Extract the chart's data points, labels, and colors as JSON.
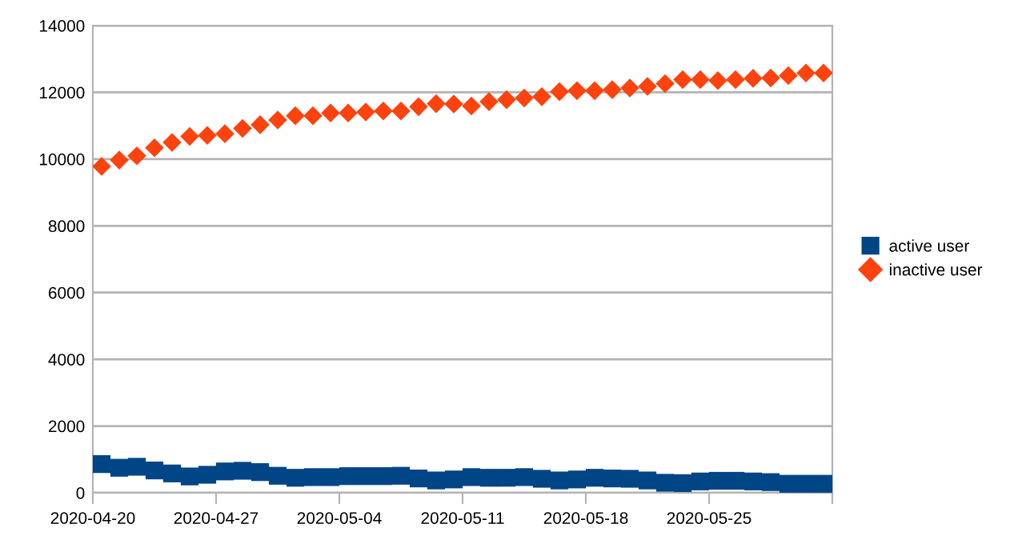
{
  "chart_data": {
    "type": "scatter",
    "x": [
      "2020-04-20T12:00",
      "2020-04-21T12:00",
      "2020-04-22T12:00",
      "2020-04-23T12:00",
      "2020-04-24T12:00",
      "2020-04-25T12:00",
      "2020-04-26T12:00",
      "2020-04-27T12:00",
      "2020-04-28T12:00",
      "2020-04-29T12:00",
      "2020-04-30T12:00",
      "2020-05-01T12:00",
      "2020-05-02T12:00",
      "2020-05-03T12:00",
      "2020-05-04T12:00",
      "2020-05-05T12:00",
      "2020-05-06T12:00",
      "2020-05-07T12:00",
      "2020-05-08T12:00",
      "2020-05-09T12:00",
      "2020-05-10T12:00",
      "2020-05-11T12:00",
      "2020-05-12T12:00",
      "2020-05-13T12:00",
      "2020-05-14T12:00",
      "2020-05-15T12:00",
      "2020-05-16T12:00",
      "2020-05-17T12:00",
      "2020-05-18T12:00",
      "2020-05-19T12:00",
      "2020-05-20T12:00",
      "2020-05-21T12:00",
      "2020-05-22T12:00",
      "2020-05-23T12:00",
      "2020-05-24T12:00",
      "2020-05-25T12:00",
      "2020-05-26T12:00",
      "2020-05-27T12:00",
      "2020-05-28T12:00",
      "2020-05-29T12:00",
      "2020-05-30T12:00",
      "2020-05-31T12:00"
    ],
    "series": [
      {
        "name": "active user",
        "color": "#004586",
        "marker": "square",
        "values": [
          860,
          750,
          780,
          670,
          580,
          490,
          540,
          640,
          660,
          620,
          510,
          450,
          470,
          470,
          500,
          500,
          500,
          510,
          430,
          370,
          400,
          470,
          450,
          450,
          470,
          420,
          370,
          400,
          450,
          430,
          420,
          370,
          300,
          290,
          340,
          360,
          360,
          340,
          320,
          270,
          270,
          270
        ]
      },
      {
        "name": "inactive user",
        "color": "#ff420e",
        "marker": "diamond",
        "values": [
          9780,
          9970,
          10100,
          10340,
          10500,
          10680,
          10710,
          10760,
          10920,
          11030,
          11170,
          11300,
          11300,
          11380,
          11380,
          11410,
          11440,
          11440,
          11570,
          11660,
          11650,
          11590,
          11720,
          11780,
          11830,
          11870,
          12020,
          12050,
          12050,
          12080,
          12130,
          12180,
          12260,
          12380,
          12380,
          12350,
          12380,
          12420,
          12430,
          12500,
          12580,
          12580
        ]
      }
    ],
    "xlim": [
      "2020-04-20",
      "2020-06-01"
    ],
    "xticks": [
      "2020-04-20",
      "2020-04-27",
      "2020-05-04",
      "2020-05-11",
      "2020-05-18",
      "2020-05-25",
      {
        "value": "2020-06-01",
        "label": null
      }
    ],
    "ylim": [
      0,
      14000
    ],
    "yticks": [
      0,
      2000,
      4000,
      6000,
      8000,
      10000,
      12000,
      14000
    ],
    "grid": "y",
    "legend": "right"
  }
}
